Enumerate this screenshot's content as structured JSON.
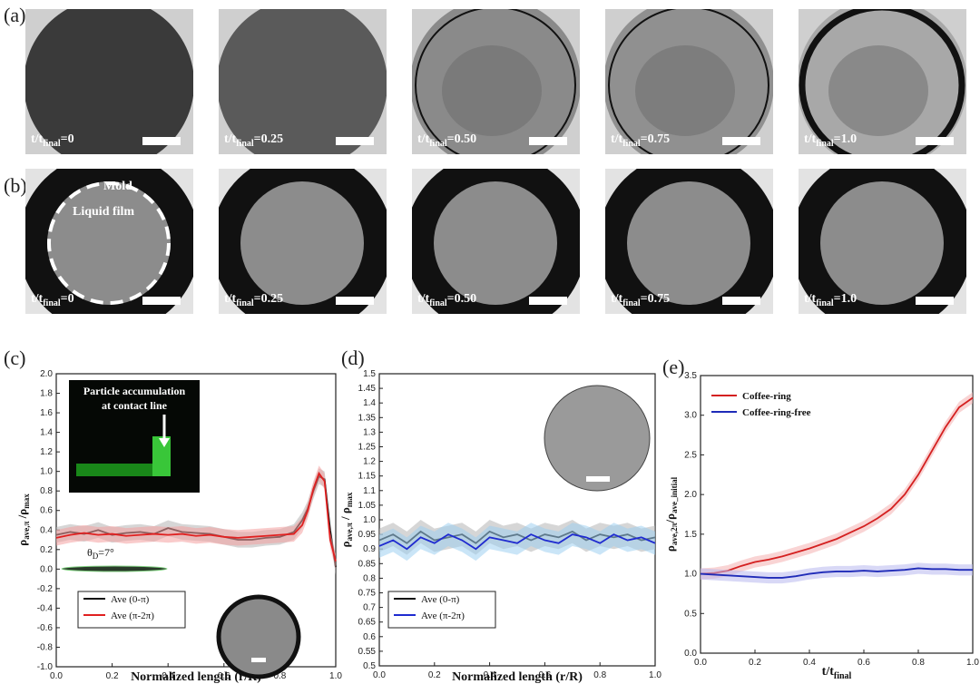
{
  "panel_labels": {
    "a": "(a)",
    "b": "(b)",
    "c": "(c)",
    "d": "(d)",
    "e": "(e)"
  },
  "row_a": {
    "time_labels": [
      "t/t",
      "t/t",
      "t/t",
      "t/t",
      "t/t"
    ],
    "time_subs": [
      "final",
      "final",
      "final",
      "final",
      "final"
    ],
    "time_values": [
      "=0",
      "=0.25",
      "=0.50",
      "=0.75",
      "=1.0"
    ]
  },
  "row_b": {
    "time_labels": [
      "t/t",
      "t/t",
      "t/t",
      "t/t",
      "t/t"
    ],
    "time_subs": [
      "final",
      "final",
      "final",
      "final",
      "final"
    ],
    "time_values": [
      "=0",
      "=0.25",
      "=0.50",
      "=0.75",
      "=1.0"
    ],
    "mold_label": "Mold",
    "film_label": "Liquid film"
  },
  "chart_data": [
    {
      "panel": "c",
      "type": "line",
      "xlabel": "Normalized length (r/R)",
      "ylabel_main": "ρ",
      "ylabel_sub": "ave,π",
      "ylabel_main2": " /ρ",
      "ylabel_sub2": "max",
      "xlim": [
        0.0,
        1.0
      ],
      "ylim": [
        -1.0,
        2.0
      ],
      "xticks": [
        "0.0",
        "0.2",
        "0.4",
        "0.6",
        "0.8",
        "1.0"
      ],
      "yticks": [
        "-1.0",
        "-0.8",
        "-0.6",
        "-0.4",
        "-0.2",
        "0.0",
        "0.2",
        "0.4",
        "0.6",
        "0.8",
        "1.0",
        "1.2",
        "1.4",
        "1.6",
        "1.8",
        "2.0"
      ],
      "inset_text_1": "Particle accumulation",
      "inset_text_2": "at contact line",
      "angle_label": "θ",
      "angle_sub": "D",
      "angle_value": "=7°",
      "series": [
        {
          "name": "Ave (0-π)",
          "color": "#111111",
          "x": [
            0.0,
            0.05,
            0.1,
            0.15,
            0.2,
            0.25,
            0.3,
            0.35,
            0.4,
            0.45,
            0.5,
            0.55,
            0.6,
            0.65,
            0.7,
            0.75,
            0.8,
            0.85,
            0.88,
            0.9,
            0.92,
            0.94,
            0.96,
            0.98,
            1.0
          ],
          "y": [
            0.35,
            0.38,
            0.36,
            0.4,
            0.35,
            0.37,
            0.38,
            0.36,
            0.42,
            0.38,
            0.37,
            0.36,
            0.33,
            0.3,
            0.3,
            0.32,
            0.33,
            0.38,
            0.5,
            0.62,
            0.8,
            0.95,
            0.92,
            0.4,
            0.02
          ]
        },
        {
          "name": "Ave (π-2π)",
          "color": "#e02020",
          "x": [
            0.0,
            0.05,
            0.1,
            0.15,
            0.2,
            0.25,
            0.3,
            0.35,
            0.4,
            0.45,
            0.5,
            0.55,
            0.6,
            0.65,
            0.7,
            0.75,
            0.8,
            0.85,
            0.88,
            0.9,
            0.92,
            0.94,
            0.96,
            0.98,
            1.0
          ],
          "y": [
            0.32,
            0.35,
            0.37,
            0.35,
            0.36,
            0.34,
            0.35,
            0.36,
            0.35,
            0.36,
            0.34,
            0.35,
            0.33,
            0.32,
            0.33,
            0.34,
            0.35,
            0.36,
            0.45,
            0.6,
            0.82,
            0.98,
            0.9,
            0.3,
            0.08
          ]
        }
      ]
    },
    {
      "panel": "d",
      "type": "line",
      "xlabel": "Normalized length (r/R)",
      "ylabel_main": "ρ",
      "ylabel_sub": "ave,π",
      "ylabel_main2": " / ρ",
      "ylabel_sub2": "max",
      "xlim": [
        0.0,
        1.0
      ],
      "ylim": [
        0.5,
        1.5
      ],
      "xticks": [
        "0.0",
        "0.2",
        "0.4",
        "0.6",
        "0.8",
        "1.0"
      ],
      "yticks": [
        "0.5",
        "0.55",
        "0.6",
        "0.65",
        "0.7",
        "0.75",
        "0.8",
        "0.85",
        "0.9",
        "0.95",
        "1.0",
        "1.05",
        "1.1",
        "1.15",
        "1.2",
        "1.25",
        "1.3",
        "1.35",
        "1.4",
        "1.45",
        "1.5"
      ],
      "series": [
        {
          "name": "Ave (0-π)",
          "color": "#111111",
          "x": [
            0.0,
            0.05,
            0.1,
            0.15,
            0.2,
            0.25,
            0.3,
            0.35,
            0.4,
            0.45,
            0.5,
            0.55,
            0.6,
            0.65,
            0.7,
            0.75,
            0.8,
            0.85,
            0.9,
            0.95,
            1.0
          ],
          "y": [
            0.93,
            0.95,
            0.92,
            0.96,
            0.93,
            0.94,
            0.95,
            0.92,
            0.96,
            0.94,
            0.95,
            0.93,
            0.95,
            0.94,
            0.96,
            0.93,
            0.95,
            0.94,
            0.95,
            0.93,
            0.94
          ]
        },
        {
          "name": "Ave (π-2π)",
          "color": "#1f2bd0",
          "x": [
            0.0,
            0.05,
            0.1,
            0.15,
            0.2,
            0.25,
            0.3,
            0.35,
            0.4,
            0.45,
            0.5,
            0.55,
            0.6,
            0.65,
            0.7,
            0.75,
            0.8,
            0.85,
            0.9,
            0.95,
            1.0
          ],
          "y": [
            0.91,
            0.93,
            0.9,
            0.94,
            0.92,
            0.95,
            0.93,
            0.9,
            0.94,
            0.93,
            0.92,
            0.95,
            0.93,
            0.92,
            0.95,
            0.94,
            0.92,
            0.95,
            0.93,
            0.94,
            0.92
          ]
        }
      ]
    },
    {
      "panel": "e",
      "type": "line",
      "xlabel_main": "t/t",
      "xlabel_sub": "final",
      "ylabel_main": "ρ",
      "ylabel_sub": "ave,2π",
      "ylabel_main2": "/ρ",
      "ylabel_sub2": "ave_initial",
      "xlim": [
        0.0,
        1.0
      ],
      "ylim": [
        0.0,
        3.5
      ],
      "xticks": [
        "0.0",
        "0.2",
        "0.4",
        "0.6",
        "0.8",
        "1.0"
      ],
      "yticks": [
        "0.0",
        "0.5",
        "1.0",
        "1.5",
        "2.0",
        "2.5",
        "3.0",
        "3.5"
      ],
      "series": [
        {
          "name": "Coffee-ring",
          "color": "#d42020",
          "band": "#f4b0b0",
          "x": [
            0.0,
            0.05,
            0.1,
            0.15,
            0.2,
            0.25,
            0.3,
            0.35,
            0.4,
            0.45,
            0.5,
            0.55,
            0.6,
            0.65,
            0.7,
            0.75,
            0.8,
            0.85,
            0.9,
            0.95,
            1.0
          ],
          "y": [
            1.0,
            1.01,
            1.04,
            1.1,
            1.15,
            1.18,
            1.22,
            1.27,
            1.32,
            1.38,
            1.44,
            1.52,
            1.6,
            1.7,
            1.82,
            2.0,
            2.25,
            2.55,
            2.85,
            3.1,
            3.22
          ]
        },
        {
          "name": "Coffee-ring-free",
          "color": "#1f2bb8",
          "band": "#b8b8ee",
          "x": [
            0.0,
            0.05,
            0.1,
            0.15,
            0.2,
            0.25,
            0.3,
            0.35,
            0.4,
            0.45,
            0.5,
            0.55,
            0.6,
            0.65,
            0.7,
            0.75,
            0.8,
            0.85,
            0.9,
            0.95,
            1.0
          ],
          "y": [
            1.0,
            0.99,
            0.98,
            0.97,
            0.96,
            0.95,
            0.95,
            0.97,
            1.0,
            1.02,
            1.03,
            1.03,
            1.04,
            1.03,
            1.04,
            1.05,
            1.07,
            1.06,
            1.06,
            1.05,
            1.05
          ]
        }
      ]
    }
  ]
}
